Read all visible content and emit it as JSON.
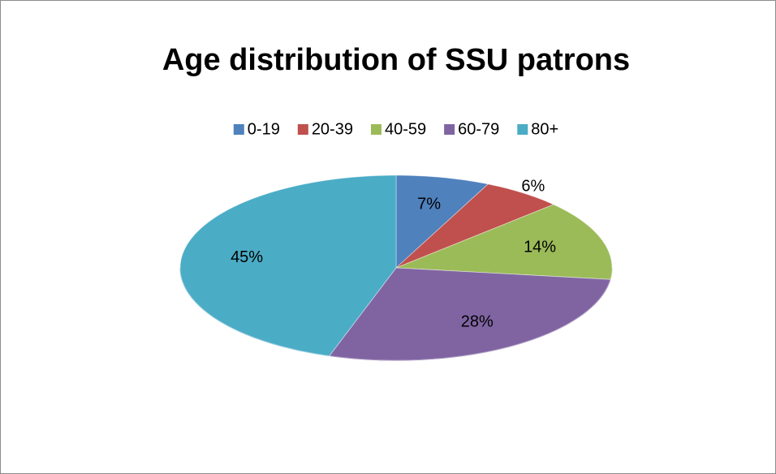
{
  "chart_data": {
    "type": "pie",
    "title": "Age distribution of SSU patrons",
    "categories": [
      "0-19",
      "20-39",
      "40-59",
      "60-79",
      "80+"
    ],
    "values": [
      7,
      6,
      14,
      28,
      45
    ],
    "value_labels": [
      "7%",
      "6%",
      "14%",
      "28%",
      "45%"
    ],
    "colors": [
      "#4f81bd",
      "#c0504d",
      "#9bbb59",
      "#8064a2",
      "#4bacc6"
    ],
    "legend": "top"
  }
}
